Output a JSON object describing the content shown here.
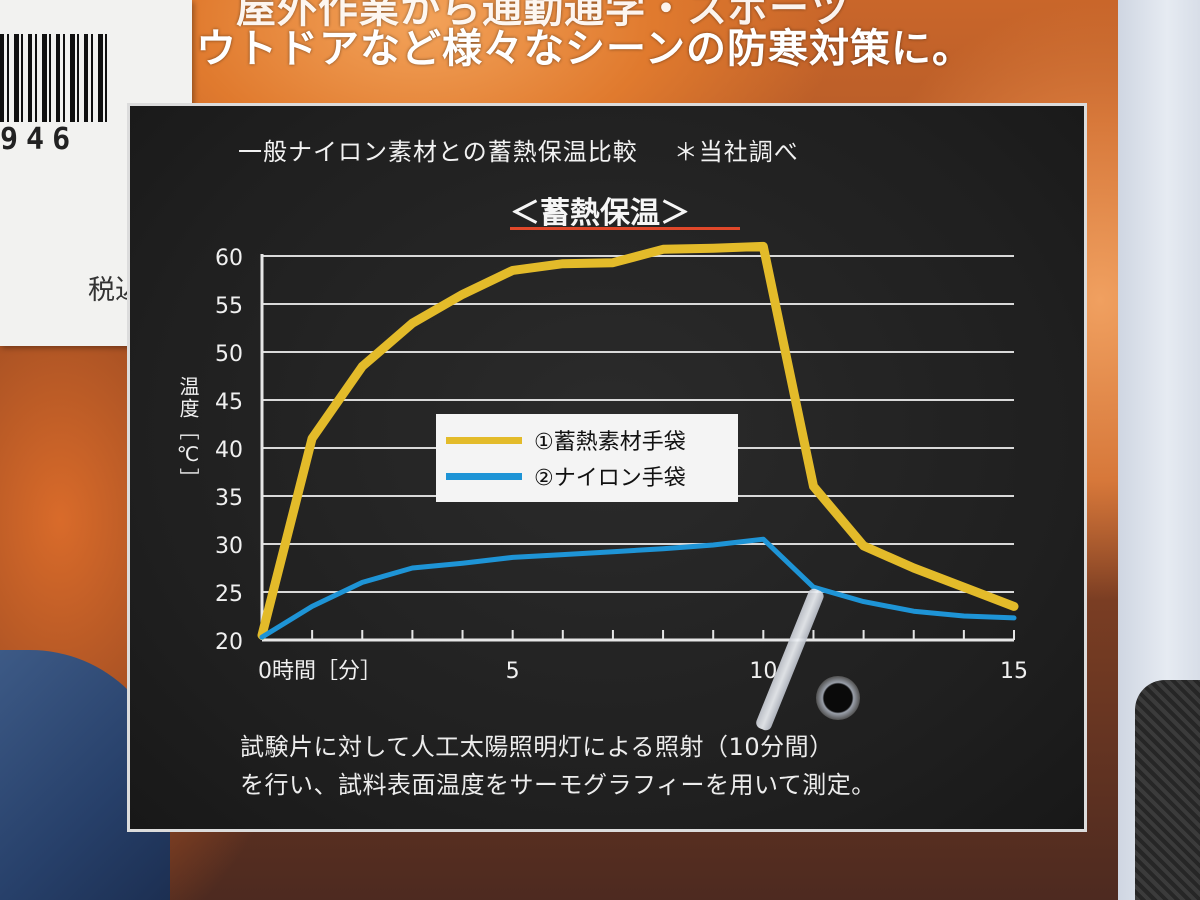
{
  "banner": {
    "line1": "屋外作業から通勤通学・スポーツ",
    "line2": "ウトドアなど様々なシーンの防寒対策に。"
  },
  "price_tag": {
    "barcode_digits": "946",
    "tax_label": "税込"
  },
  "panel": {
    "header": "一般ナイロン素材との蓄熱保温比較",
    "header_note": "＊当社調べ",
    "subtitle": "＜蓄熱保温＞",
    "footnote_line1": "試験片に対して人工太陽照明灯による照射（10分間）",
    "footnote_line2": "を行い、試料表面温度をサーモグラフィーを用いて測定。",
    "y_axis_label": "温度［℃］",
    "x_axis_label": "0時間［分］"
  },
  "colors": {
    "series1": "#e3bb2a",
    "series2": "#1e94d6",
    "subtitle_underline": "#e0482a"
  },
  "chart_data": {
    "type": "line",
    "title": "＜蓄熱保温＞",
    "xlabel": "時間［分］",
    "ylabel": "温度［℃］",
    "xlim": [
      0,
      15
    ],
    "ylim": [
      20,
      60
    ],
    "x_ticks": [
      "0",
      "5",
      "10",
      "15"
    ],
    "y_ticks": [
      "20",
      "25",
      "30",
      "35",
      "40",
      "45",
      "50",
      "55",
      "60"
    ],
    "grid": true,
    "legend_position": "center",
    "series": [
      {
        "name": "①蓄熱素材手袋",
        "color": "#e3bb2a",
        "x": [
          0,
          1,
          2,
          3,
          4,
          5,
          6,
          7,
          8,
          9,
          10,
          11,
          12,
          13,
          14,
          15
        ],
        "values": [
          20.5,
          41,
          48.5,
          53,
          56,
          58.5,
          59.2,
          59.3,
          60.7,
          60.8,
          61,
          36,
          29.8,
          27.5,
          25.5,
          23.5
        ]
      },
      {
        "name": "②ナイロン手袋",
        "color": "#1e94d6",
        "x": [
          0,
          1,
          2,
          3,
          4,
          5,
          6,
          7,
          8,
          9,
          10,
          11,
          12,
          13,
          14,
          15
        ],
        "values": [
          20.3,
          23.5,
          26,
          27.5,
          28,
          28.6,
          28.9,
          29.2,
          29.5,
          29.9,
          30.5,
          25.5,
          24,
          23,
          22.5,
          22.3
        ]
      }
    ]
  }
}
